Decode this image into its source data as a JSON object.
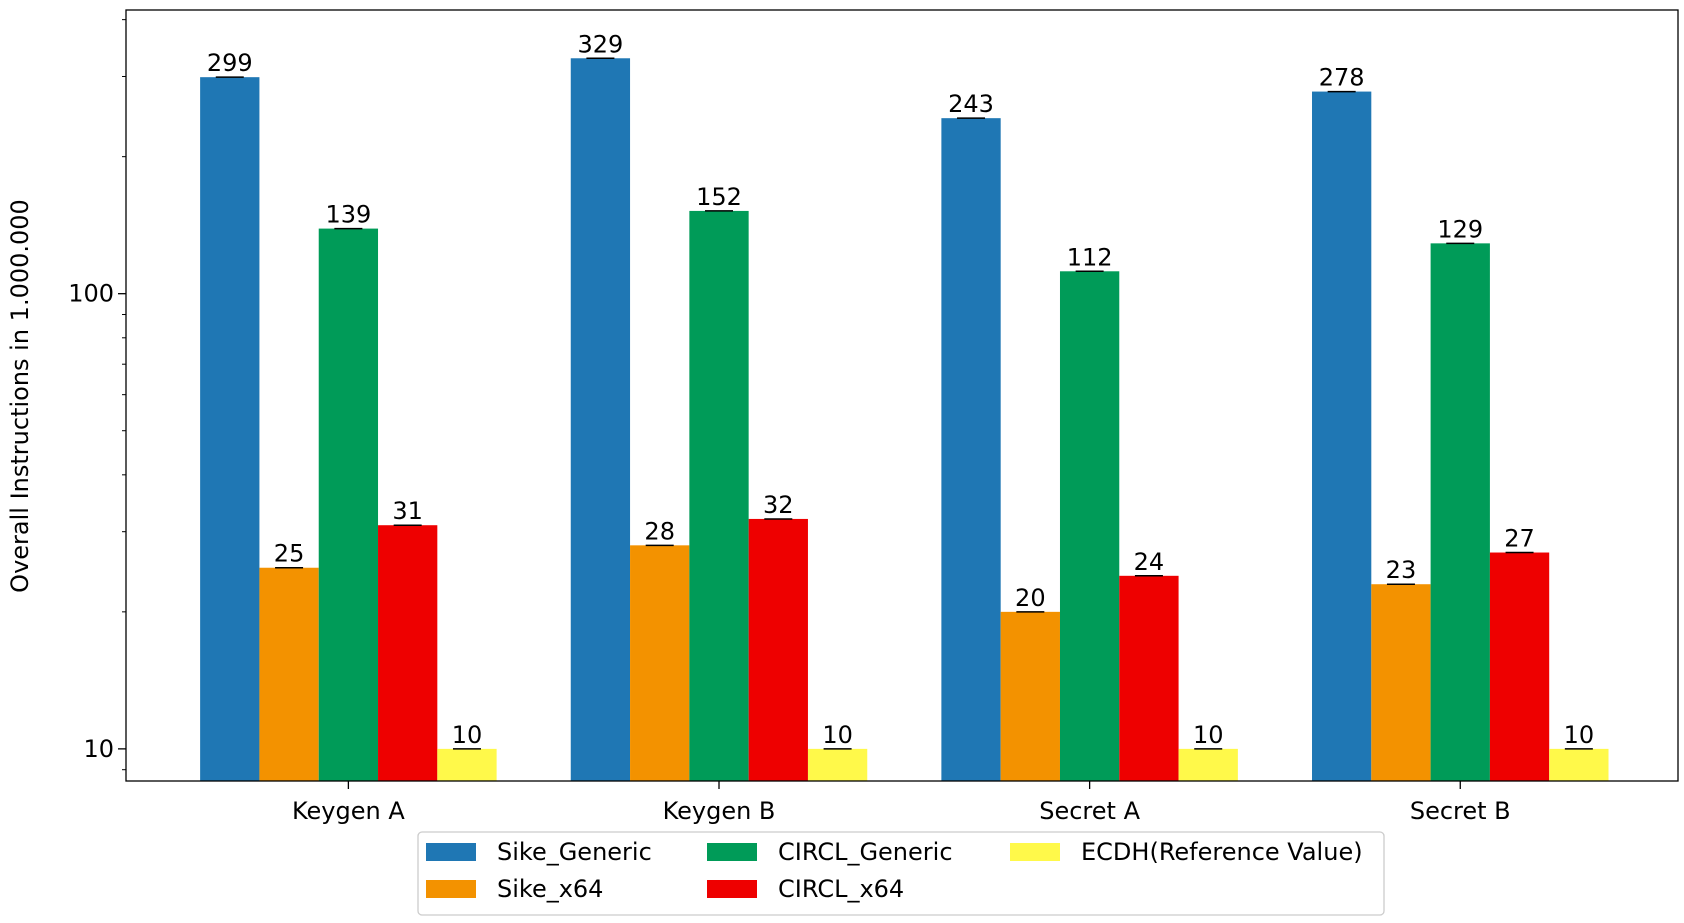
{
  "chart_data": {
    "type": "bar",
    "ylabel": "Overall Instructions in 1.000.000",
    "xlabel": "",
    "yscale": "log",
    "ylim": [
      8.5,
      420
    ],
    "yticks": [
      10,
      100
    ],
    "ytick_labels": [
      "10",
      "100"
    ],
    "categories": [
      "Keygen A",
      "Keygen B",
      "Secret A",
      "Secret B"
    ],
    "series": [
      {
        "name": "Sike_Generic",
        "color": "#1f77b4",
        "values": [
          299,
          329,
          243,
          278
        ],
        "labels": [
          "299",
          "329",
          "243",
          "278"
        ]
      },
      {
        "name": "Sike_x64",
        "color": "#f39200",
        "values": [
          25,
          28,
          20,
          23
        ],
        "labels": [
          "25",
          "28",
          "20",
          "23"
        ]
      },
      {
        "name": "CIRCL_Generic",
        "color": "#009b58",
        "values": [
          139,
          152,
          112,
          129
        ],
        "labels": [
          "139",
          "152",
          "112",
          "129"
        ]
      },
      {
        "name": "CIRCL_x64",
        "color": "#ee0000",
        "values": [
          31,
          32,
          24,
          27
        ],
        "labels": [
          "31",
          "32",
          "24",
          "27"
        ]
      },
      {
        "name": "ECDH(Reference Value)",
        "color": "#fff94a",
        "values": [
          10,
          10,
          10,
          10
        ],
        "labels": [
          "10",
          "10",
          "10",
          "10"
        ]
      }
    ],
    "error_bars": true,
    "grid": false,
    "legend_position": "bottom-center"
  }
}
